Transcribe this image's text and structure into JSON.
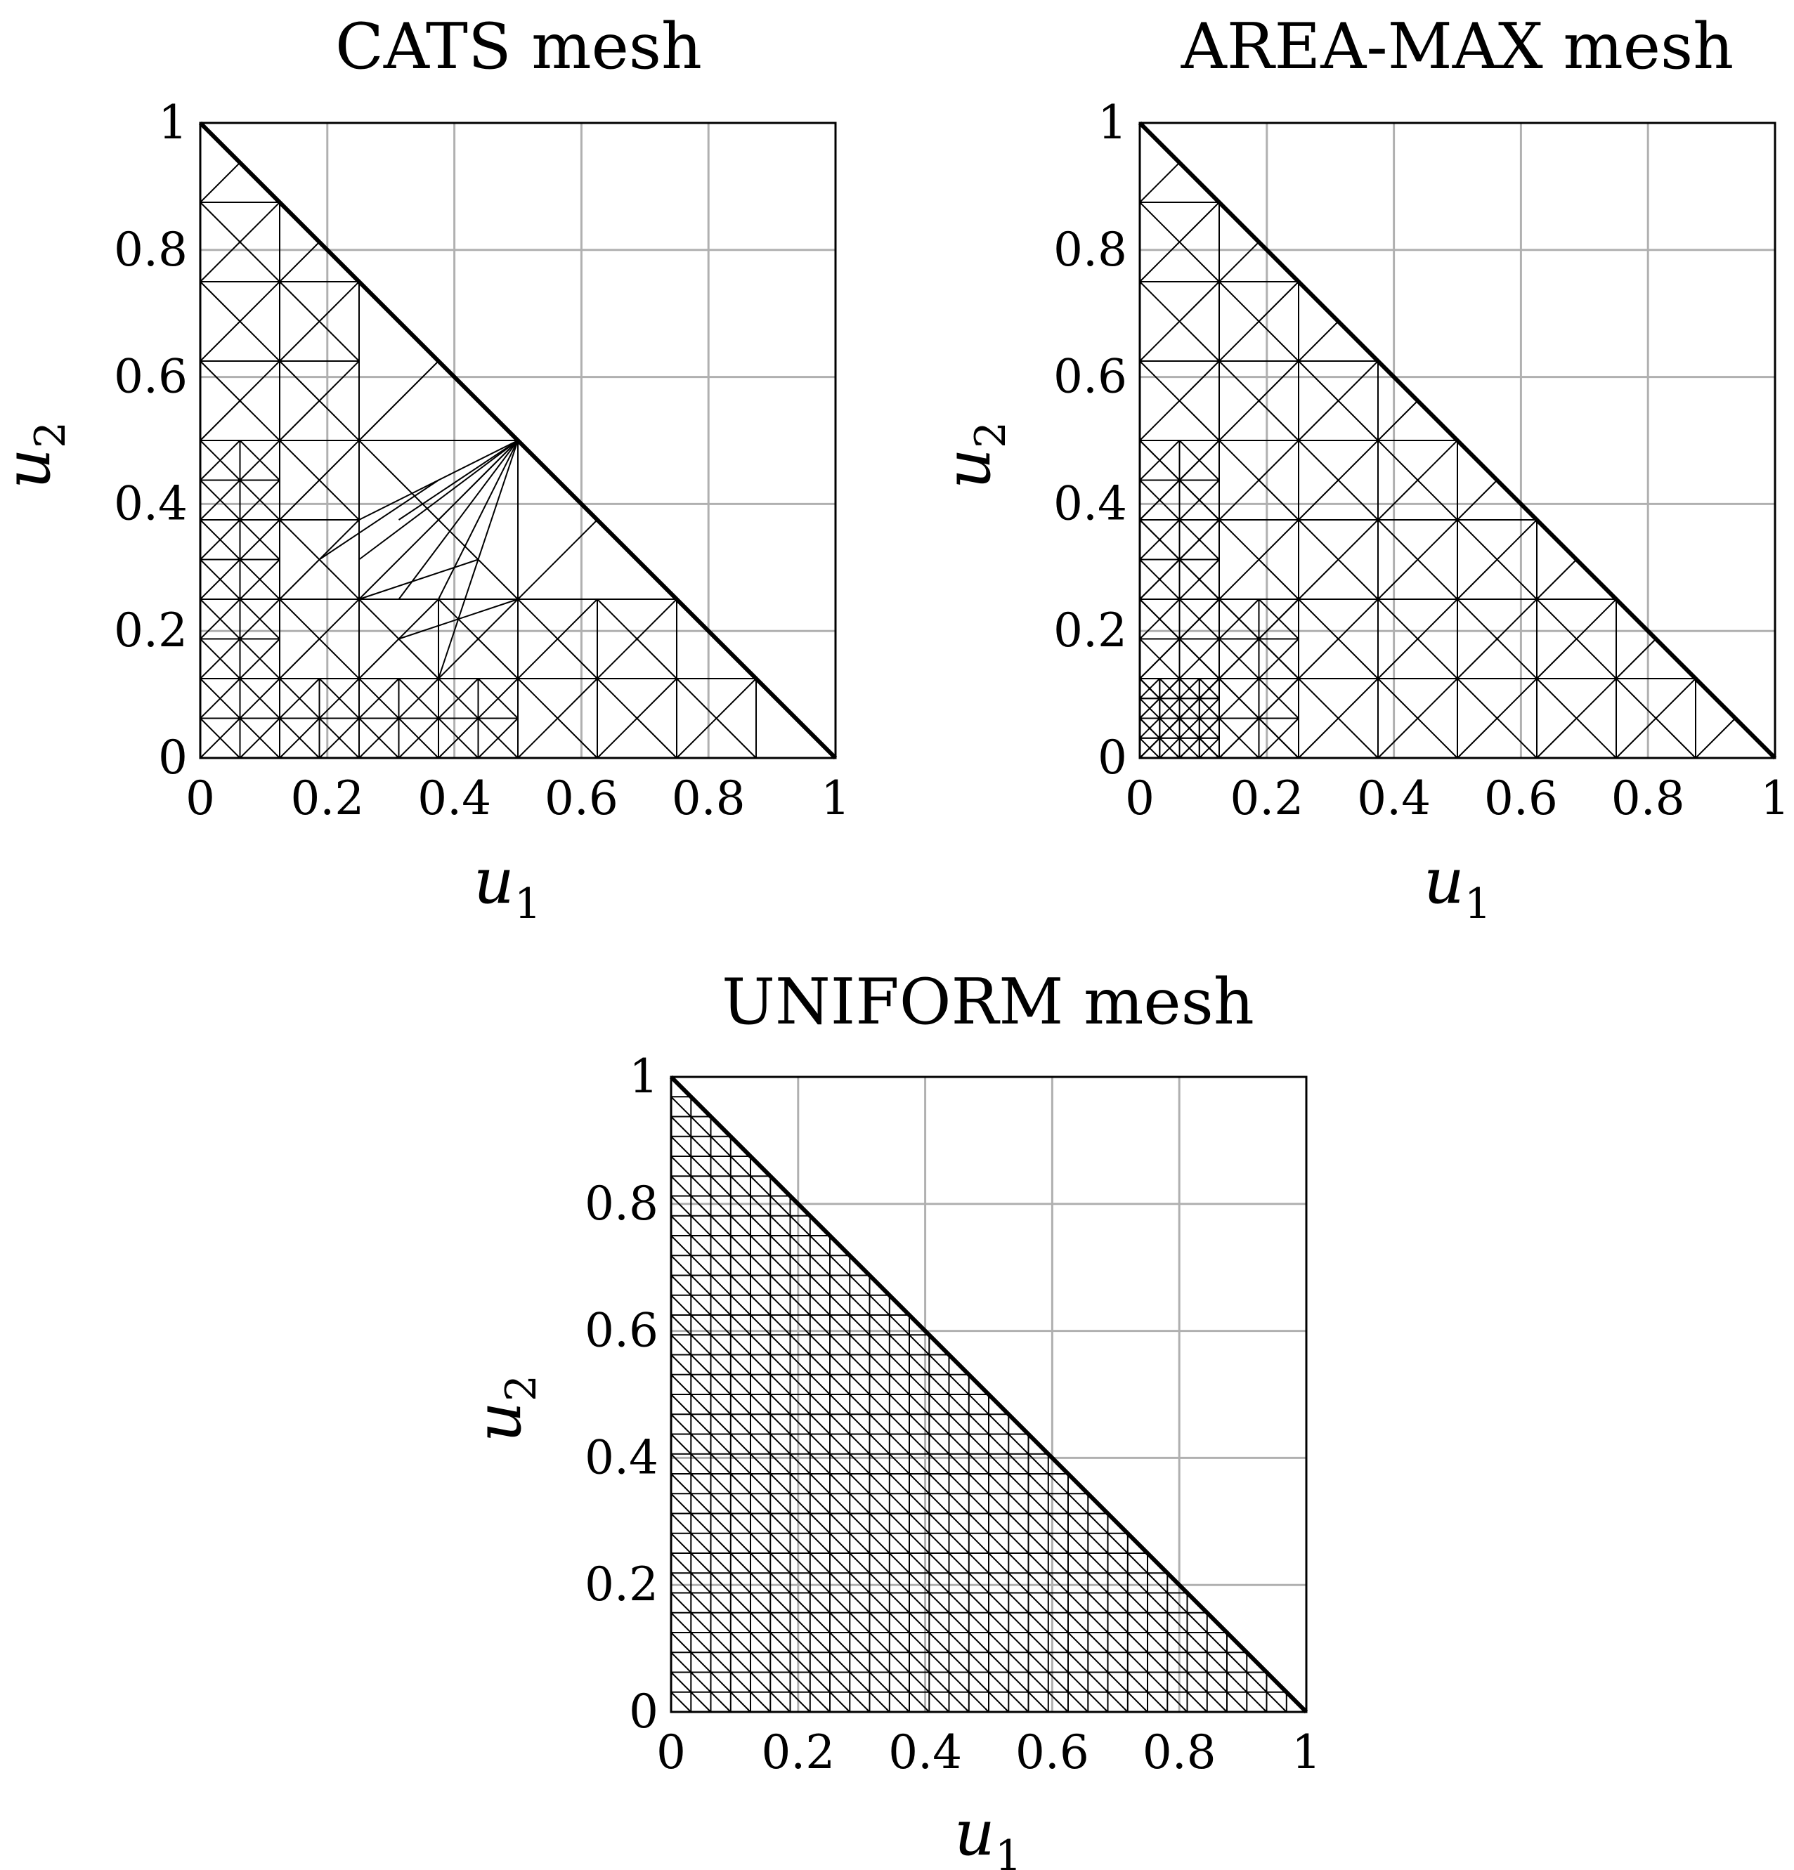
{
  "chart_data": [
    {
      "id": "cats",
      "type": "triangular-mesh",
      "title": "CATS mesh",
      "xlabel": "u",
      "xlabel_sub": "1",
      "ylabel": "u",
      "ylabel_sub": "2",
      "xlim": [
        0,
        1
      ],
      "ylim": [
        0,
        1
      ],
      "xticks": [
        0,
        0.2,
        0.4,
        0.6,
        0.8,
        1
      ],
      "yticks": [
        0,
        0.2,
        0.4,
        0.6,
        0.8,
        1
      ],
      "xtick_labels": [
        "0",
        "0.2",
        "0.4",
        "0.6",
        "0.8",
        "1"
      ],
      "ytick_labels": [
        "0",
        "0.2",
        "0.4",
        "0.6",
        "0.8",
        "1"
      ],
      "grid": true,
      "domain_vertices": [
        [
          0,
          0
        ],
        [
          1,
          0
        ],
        [
          0,
          1
        ]
      ],
      "refinement": "adaptive, fine near u1 = 0 and u2 = 0, coarse near the hypotenuse"
    },
    {
      "id": "areamax",
      "type": "triangular-mesh",
      "title": "AREA-MAX mesh",
      "xlabel": "u",
      "xlabel_sub": "1",
      "ylabel": "u",
      "ylabel_sub": "2",
      "xlim": [
        0,
        1
      ],
      "ylim": [
        0,
        1
      ],
      "xticks": [
        0,
        0.2,
        0.4,
        0.6,
        0.8,
        1
      ],
      "yticks": [
        0,
        0.2,
        0.4,
        0.6,
        0.8,
        1
      ],
      "xtick_labels": [
        "0",
        "0.2",
        "0.4",
        "0.6",
        "0.8",
        "1"
      ],
      "ytick_labels": [
        "0",
        "0.2",
        "0.4",
        "0.6",
        "0.8",
        "1"
      ],
      "grid": true,
      "domain_vertices": [
        [
          0,
          0
        ],
        [
          1,
          0
        ],
        [
          0,
          1
        ]
      ],
      "refinement": "quasi-uniform criss-cross, refined near the corner (0, 0)"
    },
    {
      "id": "uniform",
      "type": "triangular-mesh",
      "title": "UNIFORM mesh",
      "xlabel": "u",
      "xlabel_sub": "1",
      "ylabel": "u",
      "ylabel_sub": "2",
      "xlim": [
        0,
        1
      ],
      "ylim": [
        0,
        1
      ],
      "xticks": [
        0,
        0.2,
        0.4,
        0.6,
        0.8,
        1
      ],
      "yticks": [
        0,
        0.2,
        0.4,
        0.6,
        0.8,
        1
      ],
      "xtick_labels": [
        "0",
        "0.2",
        "0.4",
        "0.6",
        "0.8",
        "1"
      ],
      "ytick_labels": [
        "0",
        "0.2",
        "0.4",
        "0.6",
        "0.8",
        "1"
      ],
      "grid": true,
      "domain_vertices": [
        [
          0,
          0
        ],
        [
          1,
          0
        ],
        [
          0,
          1
        ]
      ],
      "grid_step": 0.03125,
      "refinement": "uniform structured mesh"
    }
  ]
}
